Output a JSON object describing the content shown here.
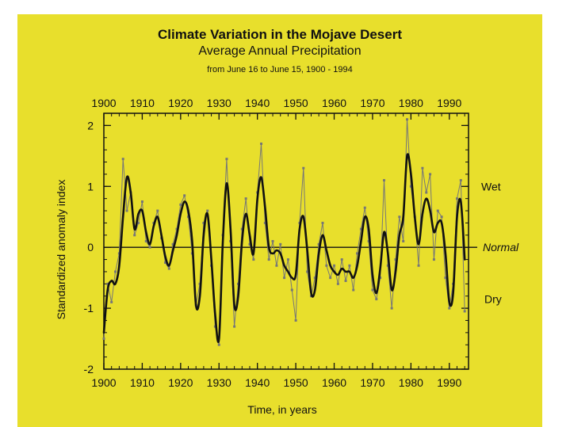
{
  "colors": {
    "background": "#e8df2c",
    "smooth_line": "#111111",
    "annual_points": "#777777"
  },
  "chart_data": {
    "type": "line",
    "title": "Climate Variation in the Mojave Desert",
    "subtitle": "Average Annual Precipitation",
    "subtitle2": "from June 16 to June 15, 1900 - 1994",
    "xlabel": "Time, in years",
    "ylabel": "Standardized anomaly index",
    "xlim": [
      1900,
      1995
    ],
    "ylim": [
      -2,
      2.2
    ],
    "x_ticks": [
      1900,
      1910,
      1920,
      1930,
      1940,
      1950,
      1960,
      1970,
      1980,
      1990
    ],
    "y_ticks": [
      -2,
      -1,
      0,
      1,
      2
    ],
    "grid": false,
    "reference_line": {
      "y": 0,
      "label": "Normal"
    },
    "annotations": [
      {
        "text": "Wet",
        "y": 1.0
      },
      {
        "text": "Normal",
        "y": 0
      },
      {
        "text": "Dry",
        "y": -0.85
      }
    ],
    "series": [
      {
        "style": "smoothed",
        "x": [
          1900,
          1901,
          1902,
          1903,
          1904,
          1905,
          1906,
          1907,
          1908,
          1909,
          1910,
          1911,
          1912,
          1913,
          1914,
          1915,
          1916,
          1917,
          1918,
          1919,
          1920,
          1921,
          1922,
          1923,
          1924,
          1925,
          1926,
          1927,
          1928,
          1929,
          1930,
          1931,
          1932,
          1933,
          1934,
          1935,
          1936,
          1937,
          1938,
          1939,
          1940,
          1941,
          1942,
          1943,
          1944,
          1945,
          1946,
          1947,
          1948,
          1949,
          1950,
          1951,
          1952,
          1953,
          1954,
          1955,
          1956,
          1957,
          1958,
          1959,
          1960,
          1961,
          1962,
          1963,
          1964,
          1965,
          1966,
          1967,
          1968,
          1969,
          1970,
          1971,
          1972,
          1973,
          1974,
          1975,
          1976,
          1977,
          1978,
          1979,
          1980,
          1981,
          1982,
          1983,
          1984,
          1985,
          1986,
          1987,
          1988,
          1989,
          1990,
          1991,
          1992,
          1993,
          1994
        ],
        "values": [
          -1.4,
          -0.7,
          -0.55,
          -0.6,
          -0.3,
          0.5,
          1.15,
          0.9,
          0.3,
          0.55,
          0.6,
          0.25,
          0.05,
          0.35,
          0.5,
          0.2,
          -0.15,
          -0.3,
          -0.05,
          0.2,
          0.55,
          0.75,
          0.6,
          0.1,
          -0.95,
          -0.8,
          0.2,
          0.55,
          -0.2,
          -1.1,
          -1.5,
          0.1,
          1.05,
          0.3,
          -0.95,
          -0.8,
          0.1,
          0.55,
          0.2,
          -0.1,
          0.8,
          1.15,
          0.65,
          0.0,
          -0.1,
          -0.05,
          -0.1,
          -0.3,
          -0.4,
          -0.5,
          -0.45,
          0.3,
          0.5,
          -0.05,
          -0.75,
          -0.7,
          -0.1,
          0.2,
          -0.05,
          -0.3,
          -0.4,
          -0.45,
          -0.35,
          -0.4,
          -0.4,
          -0.5,
          -0.3,
          0.1,
          0.5,
          0.3,
          -0.45,
          -0.75,
          -0.35,
          0.25,
          -0.1,
          -0.7,
          -0.4,
          0.2,
          0.5,
          1.5,
          1.2,
          0.5,
          0.05,
          0.55,
          0.8,
          0.6,
          0.25,
          0.4,
          0.4,
          -0.1,
          -0.9,
          -0.75,
          0.5,
          0.75,
          -0.2
        ]
      },
      {
        "style": "annual",
        "x": [
          1900,
          1901,
          1902,
          1903,
          1904,
          1905,
          1906,
          1907,
          1908,
          1909,
          1910,
          1911,
          1912,
          1913,
          1914,
          1915,
          1916,
          1917,
          1918,
          1919,
          1920,
          1921,
          1922,
          1923,
          1924,
          1925,
          1926,
          1927,
          1928,
          1929,
          1930,
          1931,
          1932,
          1933,
          1934,
          1935,
          1936,
          1937,
          1938,
          1939,
          1940,
          1941,
          1942,
          1943,
          1944,
          1945,
          1946,
          1947,
          1948,
          1949,
          1950,
          1951,
          1952,
          1953,
          1954,
          1955,
          1956,
          1957,
          1958,
          1959,
          1960,
          1961,
          1962,
          1963,
          1964,
          1965,
          1966,
          1967,
          1968,
          1969,
          1970,
          1971,
          1972,
          1973,
          1974,
          1975,
          1976,
          1977,
          1978,
          1979,
          1980,
          1981,
          1982,
          1983,
          1984,
          1985,
          1986,
          1987,
          1988,
          1989,
          1990,
          1991,
          1992,
          1993,
          1994
        ],
        "values": [
          -1.5,
          -0.6,
          -0.9,
          -0.4,
          -0.1,
          1.45,
          0.6,
          0.9,
          0.2,
          0.4,
          0.75,
          0.1,
          0.0,
          0.4,
          0.6,
          0.15,
          -0.25,
          -0.35,
          0.05,
          0.3,
          0.7,
          0.85,
          0.5,
          -0.1,
          -0.95,
          -0.6,
          0.4,
          0.6,
          -0.3,
          -1.3,
          -1.6,
          0.2,
          1.45,
          0.1,
          -1.3,
          -0.6,
          0.3,
          0.8,
          0.05,
          -0.2,
          0.9,
          1.7,
          0.4,
          -0.2,
          0.1,
          -0.3,
          0.05,
          -0.5,
          -0.2,
          -0.7,
          -1.2,
          0.4,
          1.3,
          -0.4,
          -0.8,
          -0.5,
          0.05,
          0.4,
          -0.3,
          -0.5,
          -0.3,
          -0.6,
          -0.2,
          -0.55,
          -0.3,
          -0.7,
          -0.1,
          0.3,
          0.65,
          0.1,
          -0.7,
          -0.85,
          -0.5,
          1.1,
          -0.3,
          -1.0,
          -0.2,
          0.5,
          0.1,
          2.1,
          1.0,
          0.5,
          -0.3,
          1.3,
          0.9,
          1.2,
          -0.2,
          0.6,
          0.5,
          -0.5,
          -1.0,
          -0.6,
          0.8,
          1.1,
          -1.05
        ]
      }
    ]
  }
}
